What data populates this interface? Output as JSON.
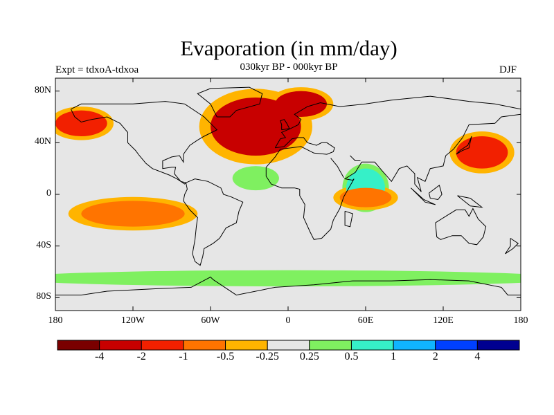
{
  "title": "Evaporation (in mm/day)",
  "subtitle": "030kyr BP - 000kyr BP",
  "expt_label": "Expt = tdxoA-tdxoa",
  "season": "DJF",
  "map": {
    "projection": "cylindrical-equidistant",
    "lon_range": [
      -180,
      180
    ],
    "lat_range": [
      -90,
      90
    ],
    "background_color": "#e6e6e6",
    "lat_ticks": [
      {
        "value": 80,
        "label": "80N"
      },
      {
        "value": 40,
        "label": "40N"
      },
      {
        "value": 0,
        "label": "0"
      },
      {
        "value": -40,
        "label": "40S"
      },
      {
        "value": -80,
        "label": "80S"
      }
    ],
    "lon_ticks": [
      {
        "value": -180,
        "label": "180"
      },
      {
        "value": -120,
        "label": "120W"
      },
      {
        "value": -60,
        "label": "60W"
      },
      {
        "value": 0,
        "label": "0"
      },
      {
        "value": 60,
        "label": "60E"
      },
      {
        "value": 120,
        "label": "120E"
      },
      {
        "value": 180,
        "label": "180"
      }
    ],
    "anomaly_regions": [
      {
        "name": "North Atlantic",
        "lon": [
          -60,
          10
        ],
        "lat": [
          30,
          75
        ],
        "level": "strong-decrease"
      },
      {
        "name": "Nordic Seas",
        "lon": [
          -10,
          30
        ],
        "lat": [
          60,
          80
        ],
        "level": "strong-decrease"
      },
      {
        "name": "Kuroshio",
        "lon": [
          130,
          170
        ],
        "lat": [
          20,
          45
        ],
        "level": "decrease"
      },
      {
        "name": "NE Pacific",
        "lon": [
          -180,
          -140
        ],
        "lat": [
          45,
          65
        ],
        "level": "decrease"
      },
      {
        "name": "Subtropical South Pacific",
        "lon": [
          -160,
          -80
        ],
        "lat": [
          -25,
          -5
        ],
        "level": "moderate-decrease"
      },
      {
        "name": "Arabian Sea",
        "lon": [
          45,
          75
        ],
        "lat": [
          -10,
          20
        ],
        "level": "increase"
      },
      {
        "name": "Tropical North Atlantic",
        "lon": [
          -40,
          -10
        ],
        "lat": [
          5,
          20
        ],
        "level": "slight-increase"
      },
      {
        "name": "Tropical Indian Ocean",
        "lon": [
          40,
          80
        ],
        "lat": [
          -10,
          5
        ],
        "level": "moderate-decrease"
      },
      {
        "name": "Southern Ocean",
        "lon": [
          -180,
          180
        ],
        "lat": [
          -70,
          -60
        ],
        "level": "slight-increase"
      }
    ]
  },
  "colorbar": {
    "colors": [
      "#7a0000",
      "#c80000",
      "#f22000",
      "#ff7400",
      "#ffb400",
      "#e6e6e6",
      "#7ff060",
      "#36f0c8",
      "#10b4ff",
      "#0040ff",
      "#000090"
    ],
    "labels": [
      "-4",
      "-2",
      "-1",
      "-0.5",
      "-0.25",
      "0.25",
      "0.5",
      "1",
      "2",
      "4"
    ]
  }
}
